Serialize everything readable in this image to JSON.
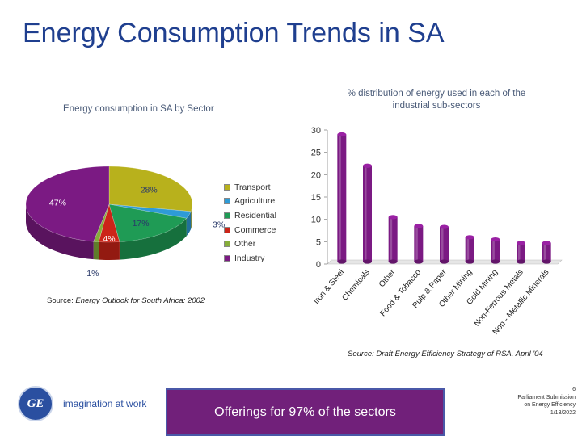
{
  "slide": {
    "title": "Energy Consumption Trends in SA",
    "tagline": "imagination at work",
    "logo_text": "GE",
    "footer_page": "6",
    "footer_line1": "Parliament Submission",
    "footer_line2": "on Energy Efficiency",
    "footer_date": "1/13/2022",
    "offer_text": "Offerings for 97% of the sectors",
    "offer_bg": "#71207a"
  },
  "pie_source": {
    "prefix": "Source: ",
    "italic": "Energy Outlook for South Africa: 2002"
  },
  "bar_source": "Source: Draft Energy Efficiency Strategy of RSA, April '04",
  "chart_data": [
    {
      "type": "pie",
      "title": "Energy consumption in SA by Sector",
      "slices": [
        {
          "name": "Transport",
          "value": 28,
          "label": "28%",
          "color": "#b8b11c"
        },
        {
          "name": "Agriculture",
          "value": 3,
          "label": "3%",
          "color": "#2e9bd6"
        },
        {
          "name": "Residential",
          "value": 17,
          "label": "17%",
          "color": "#1f9b55"
        },
        {
          "name": "Commerce",
          "value": 4,
          "label": "4%",
          "color": "#cc2418"
        },
        {
          "name": "Other",
          "value": 1,
          "label": "1%",
          "color": "#86ad3a"
        },
        {
          "name": "Industry",
          "value": 47,
          "label": "47%",
          "color": "#7b1a83"
        }
      ],
      "legend": [
        "Transport",
        "Agriculture",
        "Residential",
        "Commerce",
        "Other",
        "Industry"
      ]
    },
    {
      "type": "bar",
      "title_line1": "% distribution of energy used in each of the",
      "title_line2": "industrial sub-sectors",
      "categories": [
        "Iron & Steel",
        "Chemicals",
        "Other",
        "Food & Tobacco",
        "Pulp & Paper",
        "Other Mining",
        "Gold Mining",
        "Non-Ferrous Metals",
        "Non - Metallic Minerals"
      ],
      "values": [
        29,
        22,
        10.5,
        8.5,
        8.3,
        6,
        5.5,
        4.7,
        4.7
      ],
      "ylim": [
        0,
        30
      ],
      "yticks": [
        0,
        5,
        10,
        15,
        20,
        25,
        30
      ],
      "bar_color": "#7b1a83",
      "grid": false
    }
  ]
}
